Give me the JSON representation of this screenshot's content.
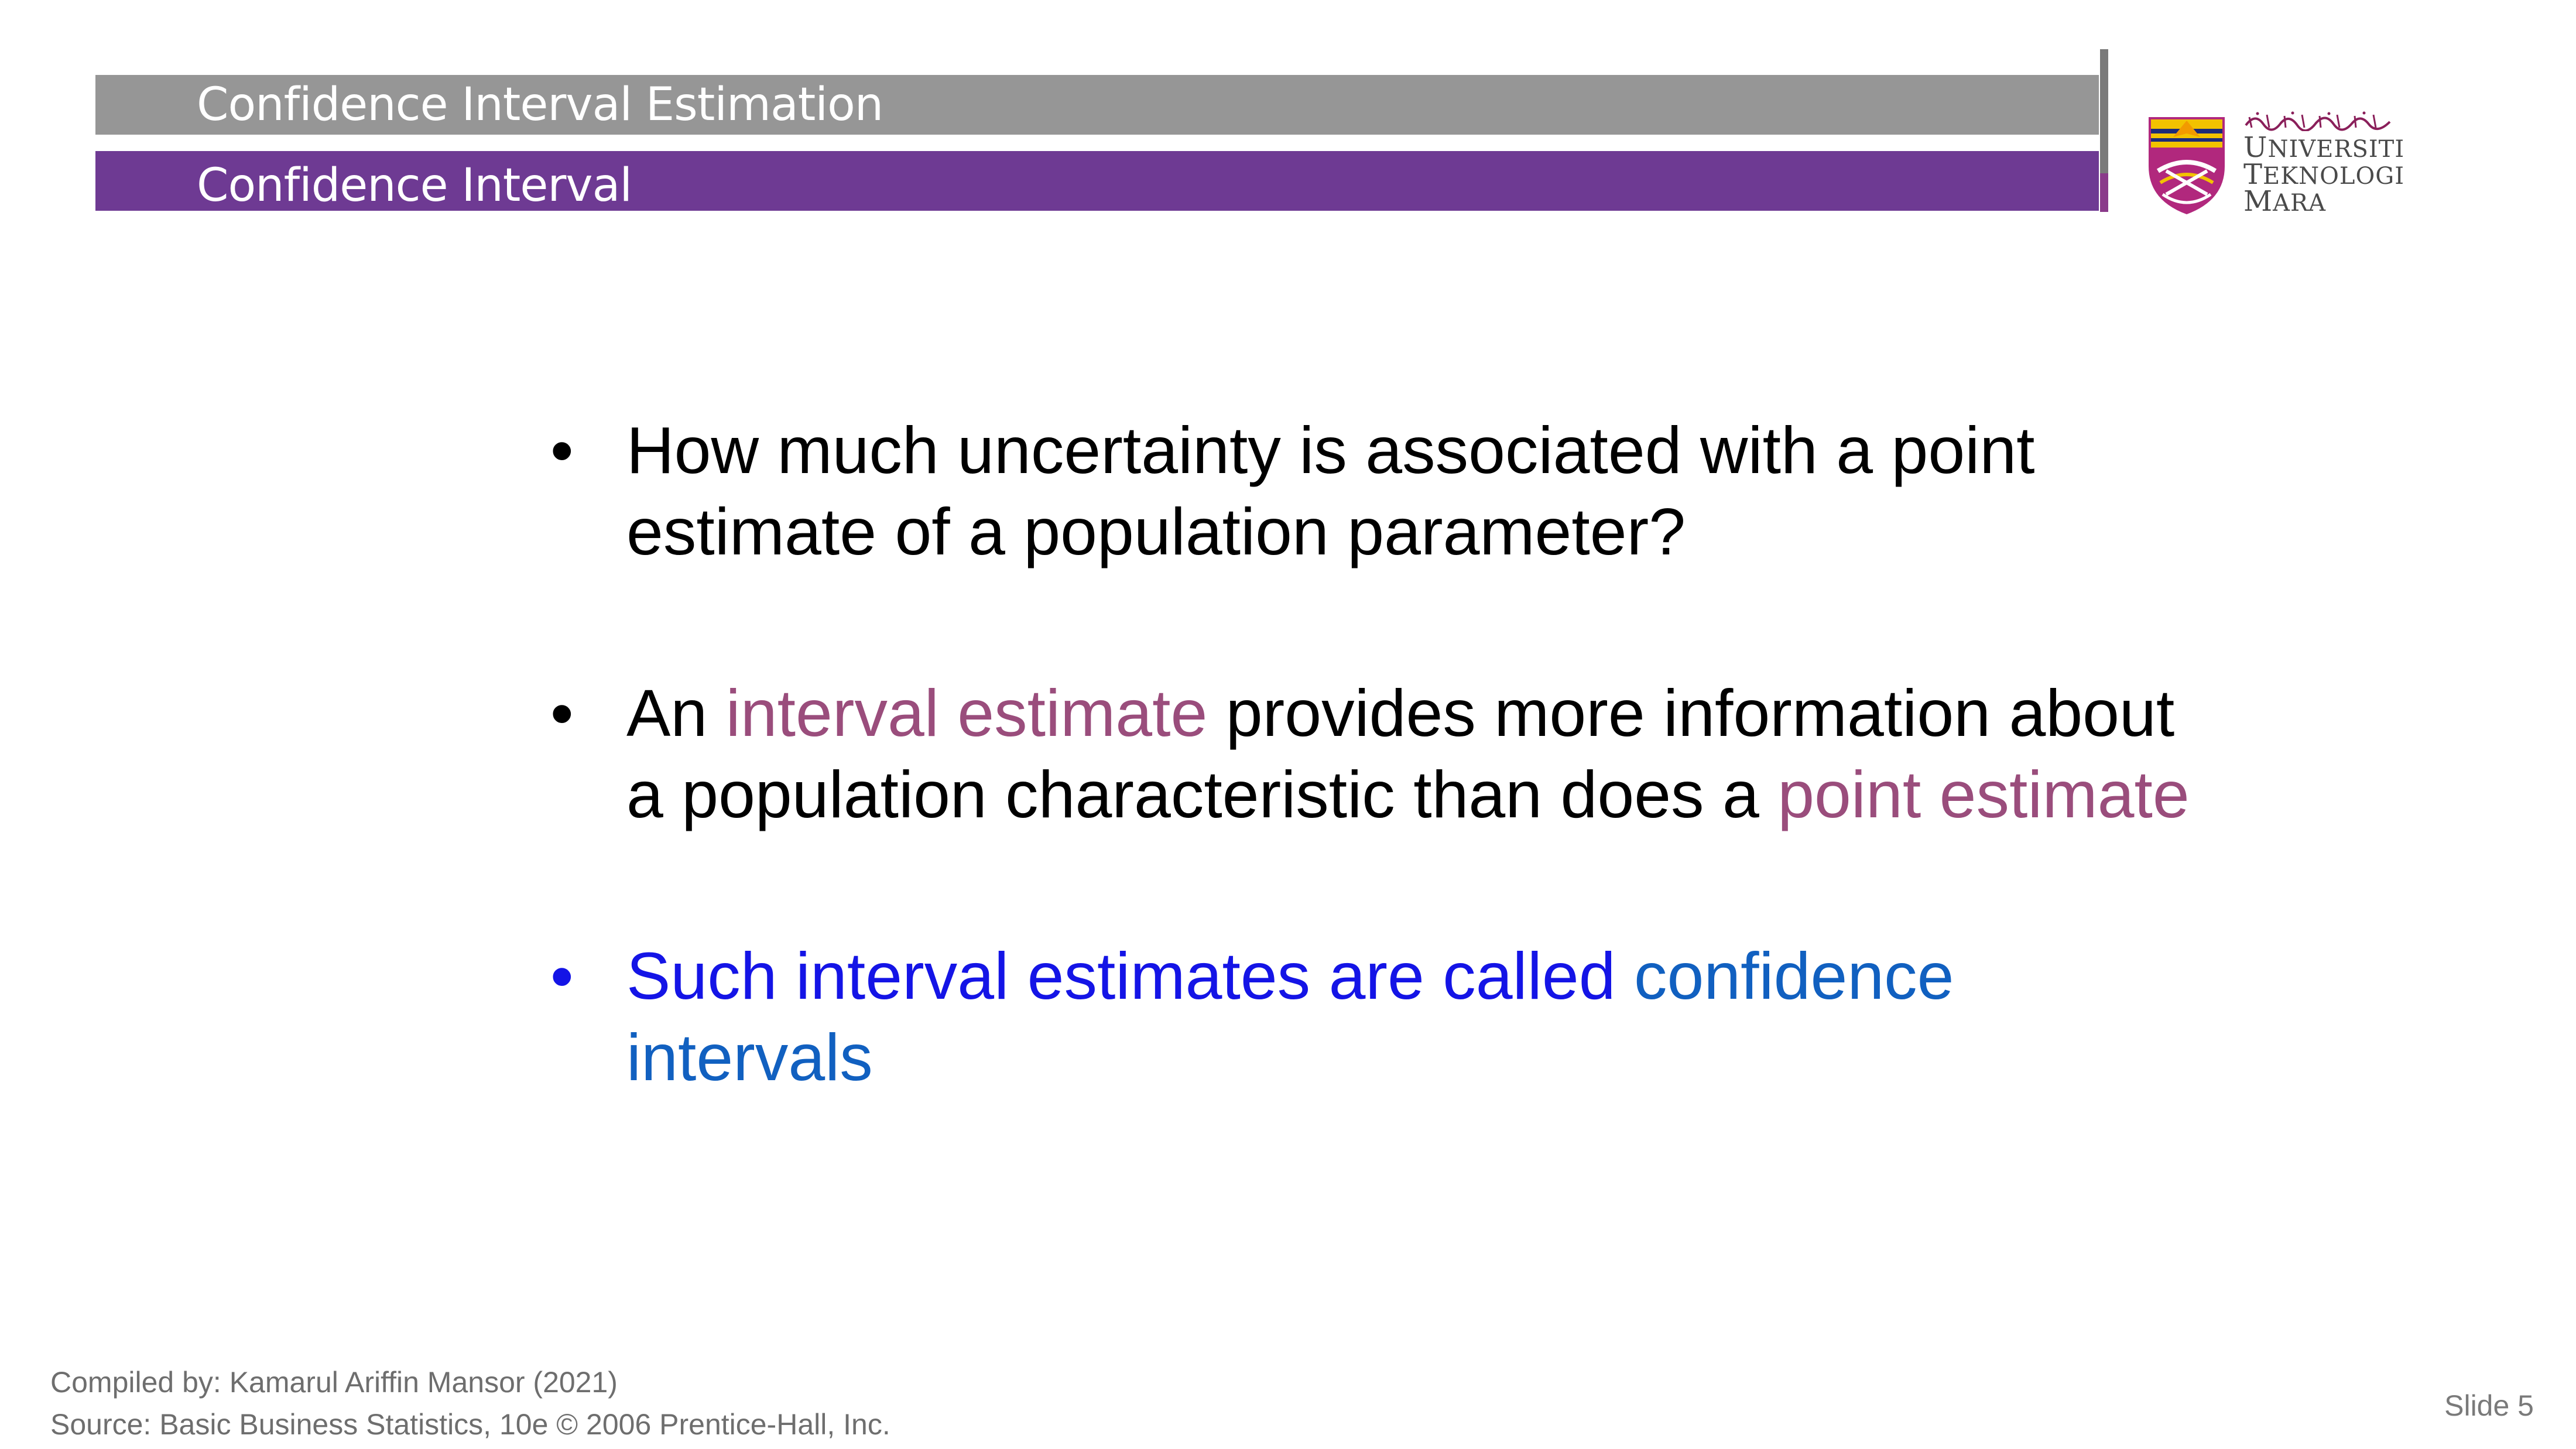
{
  "header": {
    "title": "Confidence Interval Estimation",
    "subtitle": "Confidence Interval",
    "colors": {
      "title_bar": "#969696",
      "subtitle_bar": "#6e3a93"
    }
  },
  "logo": {
    "icon": "uitm-crest-icon",
    "arabic_script": "arabic-jawi-university-name",
    "line1": {
      "cap": "U",
      "rest": "NIVERSITI"
    },
    "line2": {
      "cap": "T",
      "rest": "EKNOLOGI"
    },
    "line3": {
      "cap": "M",
      "rest": "ARA"
    }
  },
  "bullets": [
    {
      "segments": [
        {
          "text": "How much uncertainty is associated with a point estimate of a population parameter?",
          "style": "normal"
        }
      ]
    },
    {
      "segments": [
        {
          "text": "An ",
          "style": "normal"
        },
        {
          "text": "interval estimate",
          "style": "mauve"
        },
        {
          "text": " provides more information about a population characteristic than does a ",
          "style": "normal"
        },
        {
          "text": "point estimate",
          "style": "mauve"
        }
      ]
    },
    {
      "segments": [
        {
          "text": "Such interval estimates are called ",
          "style": "blue"
        },
        {
          "text": "confidence intervals",
          "style": "lightblue"
        }
      ]
    }
  ],
  "footer": {
    "compiled_by": "Compiled by: Kamarul Ariffin Mansor (2021)",
    "source": "Source: Basic Business Statistics, 10e © 2006 Prentice-Hall, Inc.",
    "slide_number": "Slide 5"
  },
  "colors": {
    "mauve": "#9a4d7c",
    "blue": "#1414e6",
    "lightblue": "#1160c0"
  }
}
